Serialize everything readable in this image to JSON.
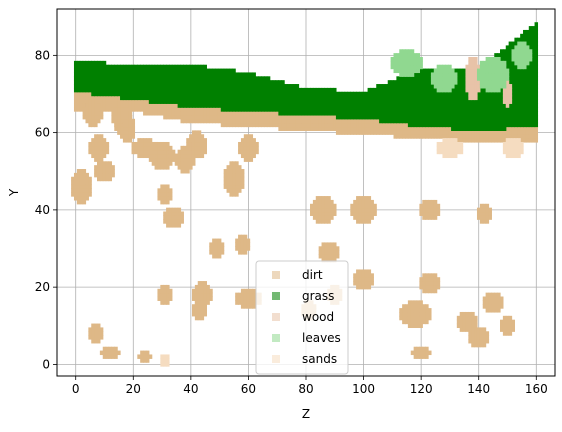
{
  "chart_data": {
    "type": "scatter",
    "xlabel": "Z",
    "ylabel": "Y",
    "xlim": [
      -6.5,
      166.5
    ],
    "ylim": [
      -3,
      92
    ],
    "xticks": [
      0,
      20,
      40,
      60,
      80,
      100,
      120,
      140,
      160
    ],
    "yticks": [
      0,
      20,
      40,
      60,
      80
    ],
    "grid": true,
    "legend": {
      "placement": "lower-center"
    },
    "series": [
      {
        "name": "dirt",
        "color": "#deb887",
        "marker": "square",
        "regions": [
          {
            "kind": "band",
            "z0": 0,
            "z1": 160,
            "ybot": [
              66,
              66,
              63,
              62,
              61,
              60,
              59,
              58,
              58
            ],
            "ytop": [
              74,
              71,
              68,
              65,
              64,
              64,
              64,
              64,
              64
            ]
          },
          {
            "kind": "blob",
            "z": 2,
            "y": 46,
            "rz": 3,
            "ry": 4
          },
          {
            "kind": "blob",
            "z": 6,
            "y": 65,
            "rz": 3,
            "ry": 3
          },
          {
            "kind": "blob",
            "z": 8,
            "y": 56,
            "rz": 3,
            "ry": 3
          },
          {
            "kind": "blob",
            "z": 10,
            "y": 50,
            "rz": 3,
            "ry": 2
          },
          {
            "kind": "blob",
            "z": 16,
            "y": 64,
            "rz": 3,
            "ry": 2
          },
          {
            "kind": "blob",
            "z": 17,
            "y": 62,
            "rz": 3,
            "ry": 2
          },
          {
            "kind": "blob",
            "z": 18,
            "y": 60,
            "rz": 2,
            "ry": 2
          },
          {
            "kind": "blob",
            "z": 24,
            "y": 56,
            "rz": 4,
            "ry": 2
          },
          {
            "kind": "blob",
            "z": 30,
            "y": 54,
            "rz": 4,
            "ry": 3
          },
          {
            "kind": "blob",
            "z": 34,
            "y": 38,
            "rz": 3,
            "ry": 2
          },
          {
            "kind": "blob",
            "z": 31,
            "y": 44,
            "rz": 2,
            "ry": 2
          },
          {
            "kind": "blob",
            "z": 38,
            "y": 53,
            "rz": 3,
            "ry": 3
          },
          {
            "kind": "blob",
            "z": 42,
            "y": 57,
            "rz": 3,
            "ry": 3
          },
          {
            "kind": "blob",
            "z": 43,
            "y": 56,
            "rz": 2,
            "ry": 2
          },
          {
            "kind": "blob",
            "z": 55,
            "y": 48,
            "rz": 3,
            "ry": 4
          },
          {
            "kind": "blob",
            "z": 60,
            "y": 56,
            "rz": 3,
            "ry": 3
          },
          {
            "kind": "blob",
            "z": 49,
            "y": 30,
            "rz": 2,
            "ry": 2
          },
          {
            "kind": "blob",
            "z": 58,
            "y": 31,
            "rz": 2,
            "ry": 2
          },
          {
            "kind": "blob",
            "z": 86,
            "y": 40,
            "rz": 4,
            "ry": 3
          },
          {
            "kind": "blob",
            "z": 100,
            "y": 40,
            "rz": 4,
            "ry": 3
          },
          {
            "kind": "blob",
            "z": 88,
            "y": 29,
            "rz": 3,
            "ry": 2
          },
          {
            "kind": "blob",
            "z": 123,
            "y": 40,
            "rz": 3,
            "ry": 2
          },
          {
            "kind": "blob",
            "z": 142,
            "y": 39,
            "rz": 2,
            "ry": 2
          },
          {
            "kind": "blob",
            "z": 100,
            "y": 22,
            "rz": 3,
            "ry": 2
          },
          {
            "kind": "blob",
            "z": 123,
            "y": 21,
            "rz": 3,
            "ry": 2
          },
          {
            "kind": "blob",
            "z": 44,
            "y": 18,
            "rz": 3,
            "ry": 3
          },
          {
            "kind": "blob",
            "z": 60,
            "y": 17,
            "rz": 4,
            "ry": 2
          },
          {
            "kind": "blob",
            "z": 31,
            "y": 18,
            "rz": 2,
            "ry": 2
          },
          {
            "kind": "blob",
            "z": 118,
            "y": 13,
            "rz": 5,
            "ry": 3
          },
          {
            "kind": "blob",
            "z": 136,
            "y": 11,
            "rz": 3,
            "ry": 2
          },
          {
            "kind": "blob",
            "z": 145,
            "y": 16,
            "rz": 3,
            "ry": 2
          },
          {
            "kind": "blob",
            "z": 150,
            "y": 10,
            "rz": 2,
            "ry": 2
          },
          {
            "kind": "blob",
            "z": 140,
            "y": 7,
            "rz": 3,
            "ry": 2
          },
          {
            "kind": "blob",
            "z": 43,
            "y": 14,
            "rz": 2,
            "ry": 2
          },
          {
            "kind": "blob",
            "z": 7,
            "y": 8,
            "rz": 2,
            "ry": 2
          },
          {
            "kind": "blob",
            "z": 12,
            "y": 3,
            "rz": 3,
            "ry": 1
          },
          {
            "kind": "blob",
            "z": 24,
            "y": 2,
            "rz": 2,
            "ry": 1
          },
          {
            "kind": "blob",
            "z": 120,
            "y": 3,
            "rz": 3,
            "ry": 1
          },
          {
            "kind": "blob",
            "z": 81,
            "y": 14,
            "rz": 2,
            "ry": 2
          },
          {
            "kind": "blob",
            "z": 90,
            "y": 18,
            "rz": 2,
            "ry": 2
          }
        ]
      },
      {
        "name": "grass",
        "color": "#008000",
        "marker": "square",
        "regions": [
          {
            "kind": "band",
            "z0": 0,
            "z1": 160,
            "ybot": [
              71,
              69,
              67,
              66,
              65,
              64,
              62,
              61,
              62
            ],
            "ytop": [
              78,
              77,
              77,
              75,
              71,
              70,
              76,
              76,
              88
            ]
          }
        ]
      },
      {
        "name": "wood",
        "color": "#e8c3a8",
        "marker": "square",
        "regions": [
          {
            "kind": "blob",
            "z": 138,
            "y": 74,
            "rz": 2,
            "ry": 5
          },
          {
            "kind": "blob",
            "z": 150,
            "y": 70,
            "rz": 1,
            "ry": 3
          }
        ]
      },
      {
        "name": "leaves",
        "color": "#90d890",
        "marker": "square",
        "regions": [
          {
            "kind": "blob",
            "z": 115,
            "y": 78,
            "rz": 5,
            "ry": 3
          },
          {
            "kind": "blob",
            "z": 128,
            "y": 74,
            "rz": 4,
            "ry": 3
          },
          {
            "kind": "blob",
            "z": 145,
            "y": 75,
            "rz": 5,
            "ry": 4
          },
          {
            "kind": "blob",
            "z": 155,
            "y": 80,
            "rz": 3,
            "ry": 3
          }
        ]
      },
      {
        "name": "sands",
        "color": "#f5dcc0",
        "marker": "square",
        "regions": [
          {
            "kind": "blob",
            "z": 130,
            "y": 56,
            "rz": 4,
            "ry": 2
          },
          {
            "kind": "blob",
            "z": 152,
            "y": 56,
            "rz": 3,
            "ry": 2
          },
          {
            "kind": "blob",
            "z": 31,
            "y": 1,
            "rz": 1,
            "ry": 1
          }
        ]
      }
    ]
  }
}
